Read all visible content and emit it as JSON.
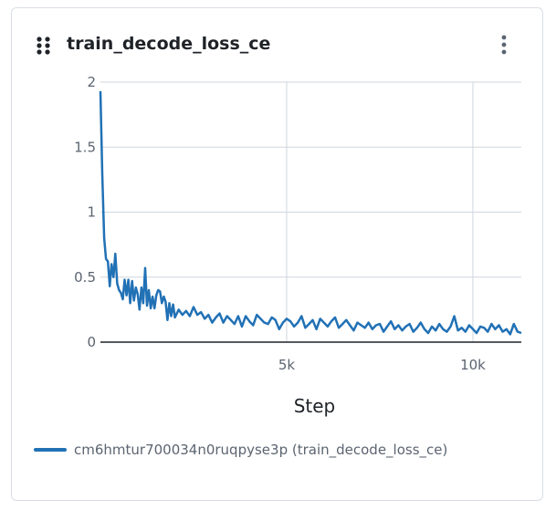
{
  "panel": {
    "title": "train_decode_loss_ce",
    "drag_icon": "drag-handle-icon",
    "menu_icon": "kebab-menu-icon"
  },
  "colors": {
    "series": "#2171b5",
    "grid": "#cfd6de",
    "axis": "#1f2328"
  },
  "legend": {
    "label": "cm6hmtur700034n0ruqpyse3p (train_decode_loss_ce)"
  },
  "chart_data": {
    "type": "line",
    "xlabel": "Step",
    "ylabel": "",
    "xlim": [
      0,
      11300
    ],
    "ylim": [
      0,
      2
    ],
    "x_ticks": [
      5000,
      10000
    ],
    "x_tick_labels": [
      "5k",
      "10k"
    ],
    "y_ticks": [
      0,
      0.5,
      1,
      1.5,
      2
    ],
    "y_tick_labels": [
      "0",
      "0.5",
      "1",
      "1.5",
      "2"
    ],
    "grid": true,
    "legend_position": "bottom-left",
    "series": [
      {
        "name": "cm6hmtur700034n0ruqpyse3p (train_decode_loss_ce)",
        "x": [
          0,
          50,
          100,
          150,
          200,
          250,
          300,
          350,
          400,
          450,
          500,
          550,
          600,
          650,
          700,
          750,
          800,
          850,
          900,
          950,
          1000,
          1050,
          1100,
          1150,
          1200,
          1250,
          1300,
          1350,
          1400,
          1450,
          1500,
          1550,
          1600,
          1650,
          1700,
          1750,
          1800,
          1850,
          1900,
          1950,
          2000,
          2100,
          2200,
          2300,
          2400,
          2500,
          2600,
          2700,
          2800,
          2900,
          3000,
          3100,
          3200,
          3300,
          3400,
          3500,
          3600,
          3700,
          3800,
          3900,
          4000,
          4100,
          4200,
          4300,
          4400,
          4500,
          4600,
          4700,
          4800,
          4900,
          5000,
          5100,
          5200,
          5300,
          5400,
          5500,
          5600,
          5700,
          5800,
          5900,
          6000,
          6100,
          6200,
          6300,
          6400,
          6500,
          6600,
          6700,
          6800,
          6900,
          7000,
          7100,
          7200,
          7300,
          7400,
          7500,
          7600,
          7700,
          7800,
          7900,
          8000,
          8100,
          8200,
          8300,
          8400,
          8500,
          8600,
          8700,
          8800,
          8900,
          9000,
          9100,
          9200,
          9300,
          9400,
          9500,
          9600,
          9700,
          9800,
          9900,
          10000,
          10100,
          10200,
          10300,
          10400,
          10500,
          10600,
          10700,
          10800,
          10900,
          11000,
          11100,
          11200,
          11300
        ],
        "values": [
          1.93,
          1.3,
          0.8,
          0.64,
          0.62,
          0.43,
          0.6,
          0.5,
          0.68,
          0.45,
          0.4,
          0.38,
          0.33,
          0.48,
          0.36,
          0.48,
          0.3,
          0.47,
          0.32,
          0.42,
          0.37,
          0.25,
          0.42,
          0.3,
          0.57,
          0.28,
          0.4,
          0.26,
          0.35,
          0.26,
          0.36,
          0.4,
          0.39,
          0.3,
          0.35,
          0.31,
          0.17,
          0.3,
          0.2,
          0.29,
          0.19,
          0.25,
          0.21,
          0.24,
          0.2,
          0.27,
          0.21,
          0.23,
          0.18,
          0.21,
          0.15,
          0.19,
          0.22,
          0.15,
          0.2,
          0.17,
          0.14,
          0.2,
          0.12,
          0.2,
          0.16,
          0.13,
          0.21,
          0.18,
          0.15,
          0.14,
          0.19,
          0.17,
          0.1,
          0.15,
          0.18,
          0.16,
          0.12,
          0.15,
          0.2,
          0.11,
          0.14,
          0.17,
          0.1,
          0.18,
          0.15,
          0.12,
          0.16,
          0.19,
          0.11,
          0.14,
          0.17,
          0.13,
          0.09,
          0.15,
          0.13,
          0.11,
          0.15,
          0.1,
          0.13,
          0.14,
          0.08,
          0.12,
          0.16,
          0.1,
          0.13,
          0.09,
          0.12,
          0.14,
          0.08,
          0.11,
          0.15,
          0.1,
          0.07,
          0.12,
          0.09,
          0.14,
          0.1,
          0.08,
          0.12,
          0.2,
          0.09,
          0.11,
          0.08,
          0.13,
          0.1,
          0.07,
          0.12,
          0.11,
          0.08,
          0.14,
          0.1,
          0.13,
          0.08,
          0.1,
          0.06,
          0.14,
          0.08,
          0.07
        ]
      }
    ]
  }
}
